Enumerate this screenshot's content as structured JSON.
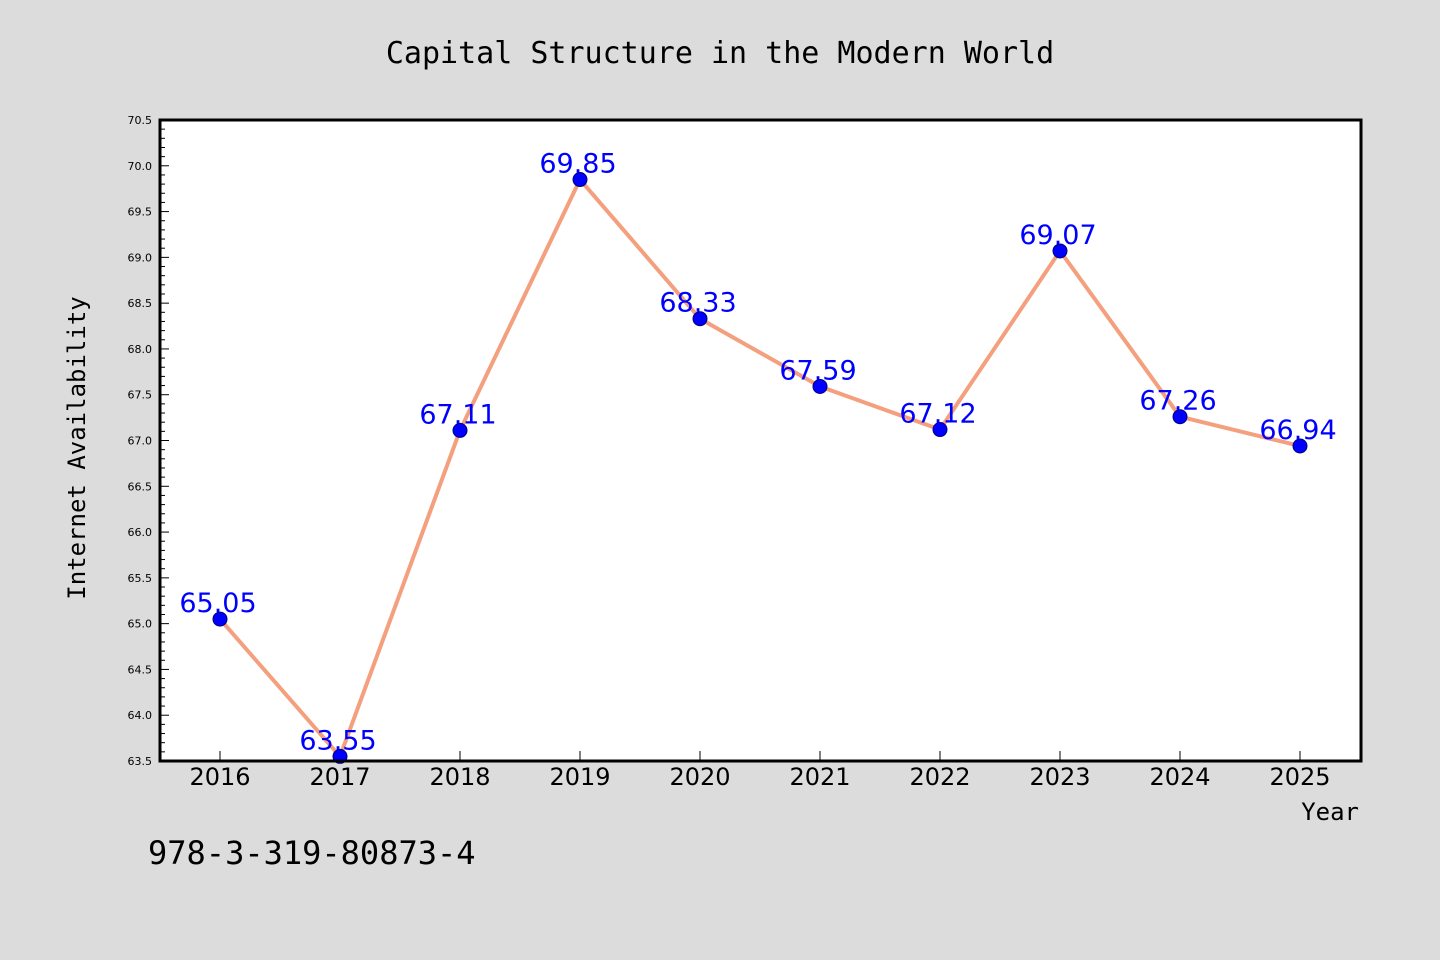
{
  "colors": {
    "background": "#dcdcdc",
    "plot_background": "#ffffff",
    "line": "#f4a07e",
    "marker": "#0000ff",
    "label": "#0000ff",
    "frame": "#000000"
  },
  "chart_data": {
    "type": "line",
    "title": "Capital Structure in the Modern World",
    "xlabel": "Year",
    "ylabel": "Internet Availability",
    "categories": [
      "2016",
      "2017",
      "2018",
      "2019",
      "2020",
      "2021",
      "2022",
      "2023",
      "2024",
      "2025"
    ],
    "series": [
      {
        "values": [
          65.05,
          63.55,
          67.11,
          69.85,
          68.33,
          67.59,
          67.12,
          69.07,
          67.26,
          66.94
        ],
        "labels": [
          "65.05",
          "63.55",
          "67.11",
          "69.85",
          "68.33",
          "67.59",
          "67.12",
          "69.07",
          "67.26",
          "66.94"
        ]
      }
    ],
    "ylim": [
      63.5,
      70.5
    ],
    "yticks": [
      "63.5",
      "64.0",
      "64.5",
      "65.0",
      "65.5",
      "66.0",
      "66.5",
      "67.0",
      "67.5",
      "68.0",
      "68.5",
      "69.0",
      "69.5",
      "70.0",
      "70.5"
    ],
    "ytick_step": 0.5,
    "y_minor_step": 0.1,
    "grid": false,
    "legend": "none"
  },
  "footer": {
    "isbn": "978-3-319-80873-4"
  }
}
